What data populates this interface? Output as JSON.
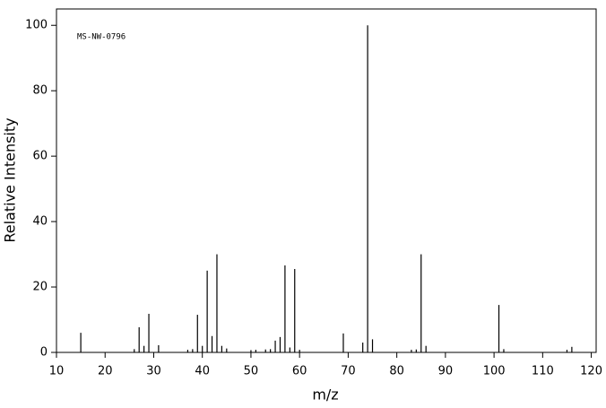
{
  "chart_data": {
    "type": "stem",
    "annotation": "MS-NW-0796",
    "x_label": "m/z",
    "y_label": "Relative Intensity",
    "color": "#000000",
    "x": [
      15,
      26,
      27,
      28,
      29,
      31,
      37,
      38,
      39,
      40,
      41,
      42,
      43,
      44,
      45,
      50,
      51,
      53,
      54,
      55,
      56,
      57,
      58,
      59,
      60,
      69,
      73,
      74,
      75,
      83,
      84,
      85,
      86,
      101,
      102,
      115,
      116
    ],
    "values": [
      6.0,
      1.0,
      7.7,
      2.0,
      11.8,
      2.2,
      0.8,
      1.0,
      11.5,
      2.0,
      25.0,
      5.0,
      30.0,
      2.0,
      1.2,
      0.7,
      0.8,
      0.9,
      1.0,
      3.6,
      4.7,
      26.6,
      1.5,
      25.5,
      0.8,
      5.8,
      3.0,
      100,
      4.0,
      0.8,
      0.9,
      30.0,
      2.0,
      14.5,
      1.0,
      0.8,
      1.7
    ],
    "xlim": [
      10,
      121
    ],
    "ylim": [
      0,
      105
    ],
    "xticks": [
      10,
      20,
      30,
      40,
      50,
      60,
      70,
      80,
      90,
      100,
      110,
      120
    ],
    "yticks": [
      0,
      20,
      40,
      60,
      80,
      100
    ]
  }
}
